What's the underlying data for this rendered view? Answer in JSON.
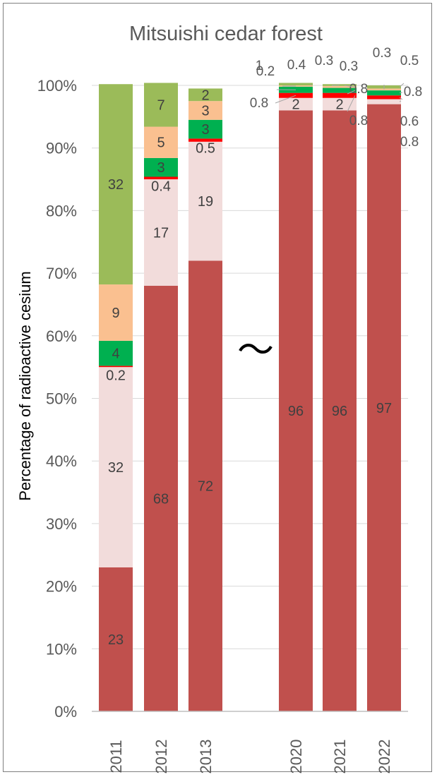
{
  "chart_data": {
    "type": "bar",
    "stacked": true,
    "title": "Mitsuishi cedar forest",
    "ylabel": "Percentage of radioactive cesium",
    "xlabel": "",
    "ylim": [
      0,
      100
    ],
    "yticks": [
      "0%",
      "10%",
      "20%",
      "30%",
      "40%",
      "50%",
      "60%",
      "70%",
      "80%",
      "90%",
      "100%"
    ],
    "grid": true,
    "legend": "none",
    "axis_break_symbol": "〜",
    "categories": [
      "2011",
      "2012",
      "2013",
      "2020",
      "2021",
      "2022"
    ],
    "series": [
      {
        "color": "#c0504d",
        "values": [
          23,
          68,
          72,
          96,
          96,
          97
        ],
        "labels": [
          "23",
          "68",
          "72",
          "96",
          "96",
          "97"
        ]
      },
      {
        "color": "#f2dcdb",
        "values": [
          32,
          17,
          19,
          2,
          2,
          0.8
        ],
        "labels": [
          "32",
          "17",
          "19",
          "2",
          "2",
          "0.8"
        ]
      },
      {
        "color": "#ff0000",
        "values": [
          0.2,
          0.4,
          0.5,
          0.8,
          0.8,
          0.6
        ],
        "labels": [
          "0.2",
          "0.4",
          "0.5",
          "0.8",
          "0.8",
          "0.6"
        ]
      },
      {
        "color": "#00b050",
        "values": [
          4,
          3,
          3,
          1,
          0.8,
          0.8
        ],
        "labels": [
          "4",
          "3",
          "3",
          "1",
          "0.8",
          "0.8"
        ]
      },
      {
        "color": "#fac090",
        "values": [
          9,
          5,
          3,
          0.2,
          0.3,
          0.3
        ],
        "labels": [
          "9",
          "5",
          "3",
          "0.2",
          "0.3",
          "0.3"
        ]
      },
      {
        "color": "#9bbb59",
        "values": [
          32,
          7,
          2,
          0.4,
          0.3,
          0.5
        ],
        "labels": [
          "32",
          "7",
          "2",
          "0.4",
          "0.3",
          "0.5"
        ]
      }
    ],
    "colors": {
      "grid": "#d9d9d9",
      "axis": "#bfbfbf",
      "text": "#595959",
      "label": "#404040"
    }
  }
}
